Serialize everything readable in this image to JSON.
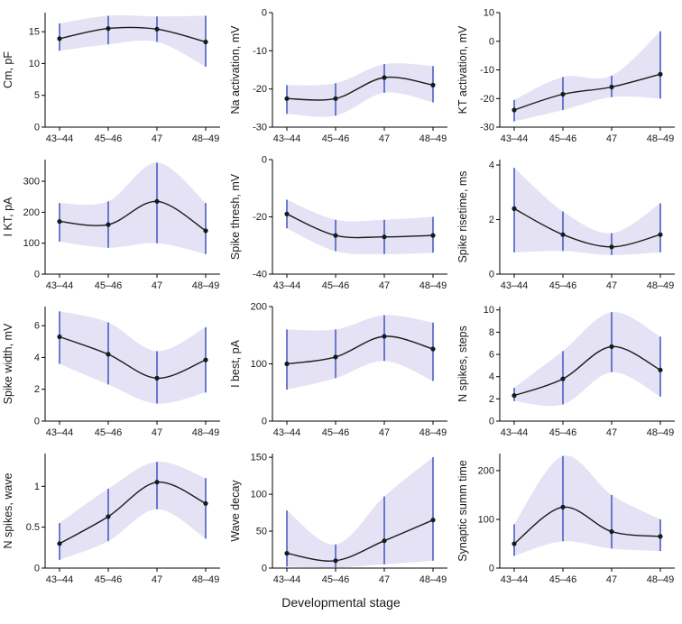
{
  "chart_data": {
    "type": "line",
    "description": "4x3 grid of mean curves with shaded confidence bands and vertical error bars across developmental stages",
    "categories": [
      "43–44",
      "45–46",
      "47",
      "48–49"
    ],
    "xlabel": "Developmental stage",
    "layout": {
      "rows": 4,
      "cols": 3,
      "grid": false,
      "band": "shaded confidence region",
      "errorbars": true,
      "legend": "none"
    },
    "style": {
      "band_color": "#e4e2f4",
      "errorbar_color": "#4a5fc4",
      "line_color": "#1a1a1a",
      "point_color": "#1a1a1a",
      "axis_color": "#000000"
    },
    "panels": [
      {
        "ylabel": "Cm, pF",
        "ylim": [
          0,
          18
        ],
        "yticks": [
          0,
          5,
          10,
          15
        ],
        "values": [
          13.9,
          15.5,
          15.4,
          13.4
        ],
        "lower": [
          12.0,
          13.0,
          13.4,
          9.5
        ],
        "upper": [
          16.3,
          17.5,
          17.4,
          17.5
        ]
      },
      {
        "ylabel": "Na activation, mV",
        "ylim": [
          -30,
          0
        ],
        "yticks": [
          -30,
          -20,
          -10,
          0
        ],
        "values": [
          -22.5,
          -22.5,
          -17,
          -19
        ],
        "lower": [
          -26.5,
          -27,
          -21,
          -23.5
        ],
        "upper": [
          -19,
          -18.5,
          -13.5,
          -14
        ]
      },
      {
        "ylabel": "KT activation, mV",
        "ylim": [
          -30,
          10
        ],
        "yticks": [
          -30,
          -20,
          -10,
          0,
          10
        ],
        "values": [
          -24,
          -18.5,
          -16,
          -11.5
        ],
        "lower": [
          -28,
          -24,
          -19.5,
          -20
        ],
        "upper": [
          -20.5,
          -12.5,
          -12,
          3.5
        ]
      },
      {
        "ylabel": "I KT, pA",
        "ylim": [
          0,
          370
        ],
        "yticks": [
          0,
          100,
          200,
          300
        ],
        "values": [
          170,
          160,
          235,
          140
        ],
        "lower": [
          105,
          85,
          100,
          65
        ],
        "upper": [
          230,
          235,
          360,
          230
        ]
      },
      {
        "ylabel": "Spike thresh, mV",
        "ylim": [
          -40,
          0
        ],
        "yticks": [
          -40,
          -20,
          0
        ],
        "values": [
          -19,
          -26.5,
          -27,
          -26.5
        ],
        "lower": [
          -24,
          -32,
          -33,
          -32.5
        ],
        "upper": [
          -14,
          -21,
          -21,
          -20
        ]
      },
      {
        "ylabel": "Spike risetime, ms",
        "ylim": [
          0,
          4.2
        ],
        "yticks": [
          0,
          2,
          4
        ],
        "values": [
          2.4,
          1.45,
          1.0,
          1.45
        ],
        "lower": [
          0.8,
          0.85,
          0.7,
          0.8
        ],
        "upper": [
          3.9,
          2.3,
          1.5,
          2.6
        ]
      },
      {
        "ylabel": "Spike width, mV",
        "ylim": [
          0,
          7.2
        ],
        "yticks": [
          0,
          2,
          4,
          6
        ],
        "values": [
          5.3,
          4.2,
          2.7,
          3.85
        ],
        "lower": [
          3.6,
          2.3,
          1.1,
          1.8
        ],
        "upper": [
          6.9,
          6.2,
          4.4,
          5.9
        ]
      },
      {
        "ylabel": "I best, pA",
        "ylim": [
          0,
          200
        ],
        "yticks": [
          0,
          100,
          200
        ],
        "values": [
          100,
          112,
          148,
          126
        ],
        "lower": [
          55,
          75,
          105,
          70
        ],
        "upper": [
          160,
          160,
          185,
          172
        ]
      },
      {
        "ylabel": "N spikes, steps",
        "ylim": [
          0,
          10.3
        ],
        "yticks": [
          0,
          2,
          4,
          6,
          8,
          10
        ],
        "values": [
          2.3,
          3.8,
          6.7,
          4.6
        ],
        "lower": [
          1.8,
          1.5,
          4.4,
          2.2
        ],
        "upper": [
          3.0,
          6.3,
          9.8,
          7.6
        ]
      },
      {
        "ylabel": "N spikes, wave",
        "ylim": [
          0,
          1.4
        ],
        "yticks": [
          0,
          0.5,
          1
        ],
        "values": [
          0.3,
          0.63,
          1.05,
          0.79
        ],
        "lower": [
          0.1,
          0.33,
          0.72,
          0.36
        ],
        "upper": [
          0.55,
          0.97,
          1.3,
          1.1
        ]
      },
      {
        "ylabel": "Wave decay",
        "ylim": [
          0,
          155
        ],
        "yticks": [
          0,
          50,
          100,
          150
        ],
        "values": [
          20,
          10,
          37,
          65
        ],
        "lower": [
          2,
          1,
          5,
          10
        ],
        "upper": [
          78,
          32,
          97,
          150
        ]
      },
      {
        "ylabel": "Synaptic summ time",
        "ylim": [
          0,
          235
        ],
        "yticks": [
          0,
          100,
          200
        ],
        "values": [
          50,
          125,
          75,
          65
        ],
        "lower": [
          25,
          55,
          40,
          35
        ],
        "upper": [
          90,
          230,
          150,
          100
        ]
      }
    ]
  }
}
